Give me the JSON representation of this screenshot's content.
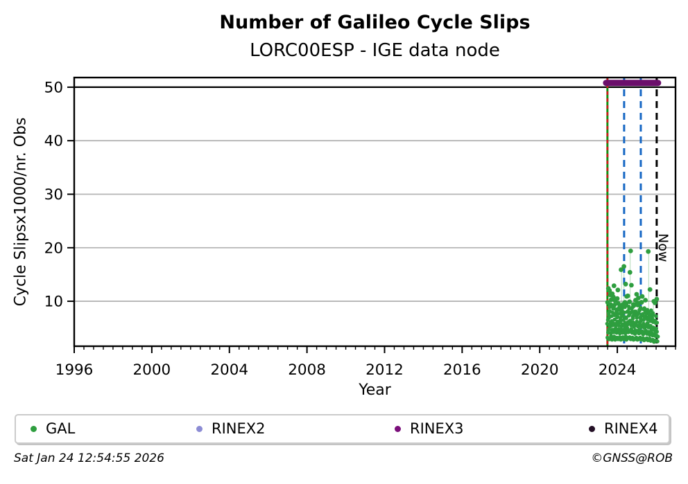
{
  "title": "Number of Galileo Cycle Slips",
  "subtitle": "LORC00ESP - IGE data node",
  "legend": [
    {
      "label": "GAL",
      "color": "#2e9e3f"
    },
    {
      "label": "RINEX2",
      "color": "#8c8cd4"
    },
    {
      "label": "RINEX3",
      "color": "#7b0f7b"
    },
    {
      "label": "RINEX4",
      "color": "#241026"
    }
  ],
  "footer": {
    "timestamp": "Sat Jan 24 12:54:55 2026",
    "credit": "©GNSS@ROB"
  },
  "chart_data": {
    "type": "scatter",
    "title": "Number of Galileo Cycle Slips",
    "subtitle": "LORC00ESP - IGE data node",
    "xlabel": "Year",
    "ylabel": "Cycle Slipsx1000/nr. Obs",
    "xlim": [
      1996,
      2027.0
    ],
    "ylim": [
      1.6,
      51.8
    ],
    "x_major_ticks": [
      1996,
      2000,
      2004,
      2008,
      2012,
      2016,
      2020,
      2024
    ],
    "x_minor_step": 0.5,
    "y_ticks": [
      10,
      20,
      30,
      40,
      50
    ],
    "grid": "horizontal",
    "grid_lines_y": [
      10,
      20,
      30,
      40
    ],
    "grid_color": "#b4b4b4",
    "frame_color": "#000000",
    "hline": {
      "y": 50,
      "color": "#000000"
    },
    "point_color": "#2e9e3f",
    "series_name": "GAL",
    "now_label": "Now",
    "now_x": 2026.03,
    "availability_bar": {
      "label": "RINEX3",
      "x1": 2023.42,
      "x2": 2026.1,
      "y": 50.8,
      "color": "#6b0f6b"
    },
    "vlines": [
      {
        "name": "data-start-green",
        "x": 2023.49,
        "color": "#129112",
        "style": "solid",
        "width": 3.0,
        "dash": ""
      },
      {
        "name": "data-start-red",
        "x": 2023.49,
        "color": "#d01818",
        "style": "dashed",
        "width": 2.6,
        "dash": "5 5"
      },
      {
        "name": "event-blue-1",
        "x": 2024.35,
        "color": "#1667c4",
        "style": "dashed",
        "width": 3.0,
        "dash": "10 7"
      },
      {
        "name": "event-blue-2",
        "x": 2025.21,
        "color": "#1667c4",
        "style": "dashed",
        "width": 3.0,
        "dash": "10 7"
      },
      {
        "name": "now-line",
        "x": 2026.03,
        "color": "#000000",
        "style": "dashed",
        "width": 3.0,
        "dash": "10 7"
      }
    ],
    "stems": [
      [
        2024.22,
        8.3,
        15.9
      ],
      [
        2024.34,
        8.9,
        16.5
      ],
      [
        2024.66,
        8.7,
        19.4
      ],
      [
        2025.62,
        7.4,
        19.3
      ],
      [
        2025.86,
        6.7,
        10.0
      ]
    ],
    "points_columns": [
      [
        2023.5,
        4.2,
        5.8,
        7.5,
        9.8
      ],
      [
        2023.54,
        3.2,
        4.8,
        6.5,
        8.9,
        12.4
      ],
      [
        2023.58,
        2.9,
        4.1,
        5.7,
        7.8,
        11.2
      ],
      [
        2023.62,
        3.5,
        5.2,
        6.9,
        9.4,
        12.0
      ],
      [
        2023.66,
        3.0,
        4.5,
        6.1,
        8.2,
        10.3
      ],
      [
        2023.7,
        2.8,
        4.0,
        5.5,
        7.2,
        9.0
      ],
      [
        2023.74,
        3.3,
        4.7,
        6.3,
        8.6,
        11.4
      ],
      [
        2023.78,
        3.1,
        4.4,
        5.9,
        7.9,
        12.9
      ],
      [
        2023.82,
        2.9,
        4.2,
        5.6,
        7.4,
        10.8
      ],
      [
        2023.86,
        3.4,
        4.9,
        6.6,
        8.8,
        10.1
      ],
      [
        2023.9,
        3.0,
        4.3,
        5.8,
        7.6,
        9.3
      ],
      [
        2023.94,
        2.8,
        4.1,
        5.4,
        7.0,
        8.5
      ],
      [
        2023.98,
        3.2,
        4.6,
        6.2,
        8.1,
        12.1
      ],
      [
        2024.02,
        3.0,
        4.4,
        5.9,
        7.7,
        10.5
      ],
      [
        2024.06,
        2.9,
        4.2,
        5.5,
        7.1,
        8.8
      ],
      [
        2024.1,
        3.3,
        4.8,
        6.4,
        8.4,
        9.6
      ],
      [
        2024.14,
        3.1,
        4.5,
        6.0,
        7.8,
        9.1
      ],
      [
        2024.18,
        2.8,
        4.0,
        5.3,
        6.9,
        8.2
      ],
      [
        2024.22,
        3.2,
        4.7,
        6.3,
        8.3,
        15.9
      ],
      [
        2024.26,
        3.0,
        4.3,
        5.7,
        7.5,
        9.4
      ],
      [
        2024.3,
        2.9,
        4.1,
        5.5,
        7.2,
        8.7
      ],
      [
        2024.34,
        3.3,
        4.8,
        6.5,
        8.9,
        16.5
      ],
      [
        2024.38,
        3.1,
        4.4,
        6.0,
        7.9,
        13.2
      ],
      [
        2024.42,
        2.8,
        4.0,
        5.4,
        7.0,
        9.8
      ],
      [
        2024.46,
        3.4,
        5.0,
        6.8,
        9.2,
        10.9
      ],
      [
        2024.5,
        3.1,
        4.5,
        6.1,
        8.0,
        9.5
      ],
      [
        2024.54,
        2.9,
        4.2,
        5.6,
        7.3,
        11.0
      ],
      [
        2024.58,
        3.2,
        4.6,
        6.2,
        8.2,
        9.9
      ],
      [
        2024.62,
        3.0,
        4.3,
        5.8,
        7.6,
        9.0
      ],
      [
        2024.66,
        3.3,
        4.8,
        6.4,
        8.7,
        19.4
      ],
      [
        2024.7,
        3.1,
        4.5,
        6.0,
        7.9,
        15.4,
        13.0
      ],
      [
        2024.74,
        2.9,
        4.1,
        5.5,
        7.1,
        8.6
      ],
      [
        2024.78,
        3.2,
        4.6,
        6.1,
        8.0,
        9.4
      ],
      [
        2024.82,
        3.0,
        4.3,
        5.7,
        7.4,
        8.9
      ],
      [
        2024.86,
        2.8,
        3.9,
        5.2,
        6.8,
        8.1
      ],
      [
        2024.9,
        3.1,
        4.4,
        5.9,
        7.7,
        9.2
      ],
      [
        2024.94,
        2.9,
        4.2,
        5.5,
        7.2,
        10.2
      ],
      [
        2024.98,
        3.2,
        4.6,
        6.2,
        8.1,
        9.7
      ],
      [
        2025.02,
        3.0,
        4.3,
        5.7,
        7.5,
        11.3
      ],
      [
        2025.06,
        2.8,
        4.0,
        5.3,
        6.9,
        10.6
      ],
      [
        2025.1,
        3.1,
        4.5,
        6.0,
        7.8,
        9.3
      ],
      [
        2025.14,
        2.9,
        4.1,
        5.4,
        7.0,
        8.4
      ],
      [
        2025.18,
        3.2,
        4.7,
        6.3,
        8.3,
        9.8
      ],
      [
        2025.22,
        3.0,
        4.3,
        5.6,
        7.3,
        8.8
      ],
      [
        2025.26,
        2.8,
        4.0,
        5.2,
        6.7,
        10.9
      ],
      [
        2025.3,
        3.1,
        4.4,
        5.8,
        7.6,
        9.8
      ],
      [
        2025.34,
        2.9,
        4.2,
        5.5,
        7.1,
        8.5
      ],
      [
        2025.38,
        2.7,
        3.8,
        5.0,
        6.5,
        7.9
      ],
      [
        2025.42,
        3.0,
        4.3,
        5.6,
        7.2,
        8.7
      ],
      [
        2025.46,
        2.8,
        4.0,
        5.3,
        6.8,
        8.2
      ],
      [
        2025.5,
        3.1,
        4.5,
        5.9,
        7.7,
        10.2
      ],
      [
        2025.54,
        2.9,
        4.1,
        5.4,
        7.0,
        8.4
      ],
      [
        2025.58,
        2.7,
        3.9,
        5.1,
        6.6,
        8.0
      ],
      [
        2025.62,
        3.0,
        4.3,
        5.7,
        7.4,
        19.3
      ],
      [
        2025.66,
        2.8,
        4.0,
        5.2,
        6.9,
        12.2
      ],
      [
        2025.7,
        2.6,
        3.7,
        4.9,
        6.3,
        7.7
      ],
      [
        2025.74,
        2.9,
        4.1,
        5.4,
        7.0,
        8.3
      ],
      [
        2025.78,
        2.7,
        3.8,
        5.0,
        6.5,
        7.8
      ],
      [
        2025.82,
        2.5,
        3.6,
        4.7,
        6.1,
        7.4
      ],
      [
        2025.86,
        2.8,
        3.9,
        5.1,
        6.7,
        10.0
      ],
      [
        2025.9,
        2.6,
        3.7,
        4.8,
        6.2,
        7.5
      ],
      [
        2025.94,
        2.4,
        3.5,
        4.6,
        5.9,
        9.7
      ],
      [
        2025.98,
        2.7,
        3.8,
        4.9,
        6.4,
        10.4
      ],
      [
        2026.02,
        2.5,
        3.6,
        4.7,
        6.0,
        7.2
      ],
      [
        2026.04,
        2.6,
        3.4,
        4.3
      ]
    ]
  }
}
